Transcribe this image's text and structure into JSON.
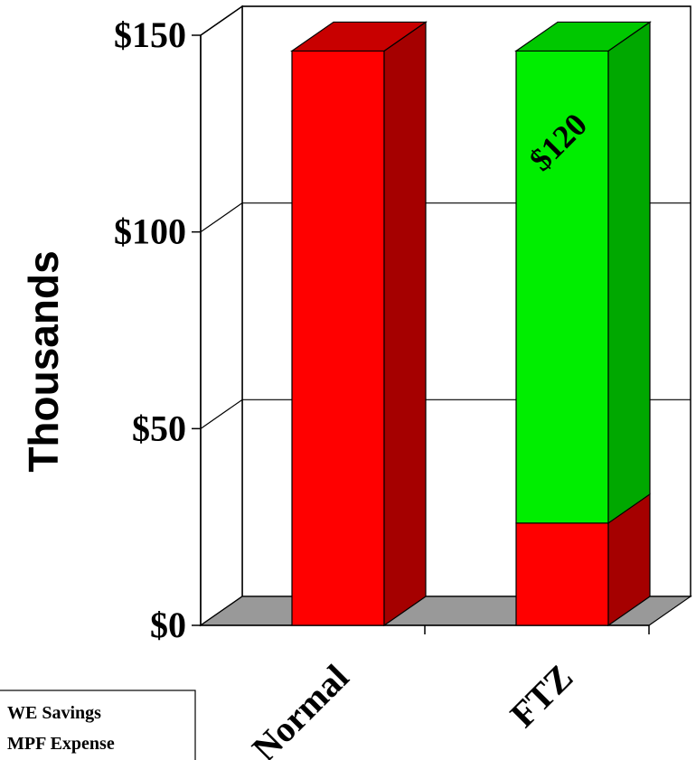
{
  "chart_data": {
    "type": "bar",
    "stacked": true,
    "three_d": true,
    "categories": [
      "Normal",
      "FTZ"
    ],
    "series": [
      {
        "name": "MPF Expense",
        "values": [
          146,
          26
        ],
        "color": "#ff0000",
        "side_color": "#a50000",
        "top_color": "#c80000"
      },
      {
        "name": "WE Savings",
        "values": [
          0,
          120
        ],
        "color": "#00ee00",
        "side_color": "#00a800",
        "top_color": "#00c800"
      }
    ],
    "data_labels": [
      {
        "category": "FTZ",
        "series": "WE Savings",
        "text": "$120"
      }
    ],
    "ylabel": "Thousands",
    "ylim": [
      0,
      150
    ],
    "yticks": [
      0,
      50,
      100,
      150
    ],
    "ytick_labels": [
      "$0",
      "$50",
      "$100",
      "$150"
    ],
    "grid": true,
    "legend_position": "bottom-left",
    "floor_color": "#999999"
  }
}
